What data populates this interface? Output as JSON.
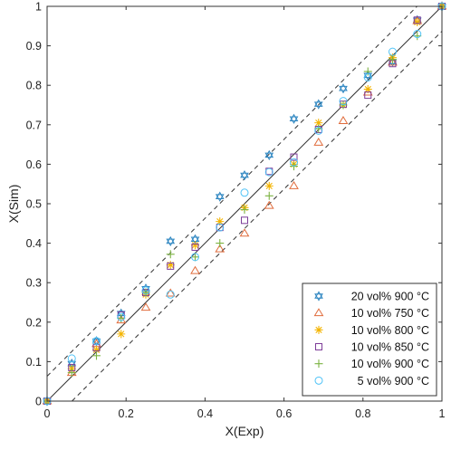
{
  "chart_data": {
    "type": "scatter",
    "xlabel": "X(Exp)",
    "ylabel": "X(Sim)",
    "xlim": [
      0,
      1
    ],
    "ylim": [
      0,
      1
    ],
    "xticks": [
      "0",
      "0.2",
      "0.4",
      "0.6",
      "0.8",
      "1"
    ],
    "yticks": [
      "0",
      "0.1",
      "0.2",
      "0.3",
      "0.4",
      "0.5",
      "0.6",
      "0.7",
      "0.8",
      "0.9",
      "1"
    ],
    "grid": false,
    "legend_position": "bottom-right",
    "reference_lines": [
      {
        "style": "solid",
        "x": [
          0,
          1
        ],
        "y": [
          0,
          1
        ]
      },
      {
        "style": "dashed",
        "x": [
          0,
          0.937
        ],
        "y": [
          0.063,
          1
        ]
      },
      {
        "style": "dashed",
        "x": [
          0.063,
          1
        ],
        "y": [
          0,
          0.937
        ]
      }
    ],
    "series": [
      {
        "name": "20 vol% 900 °C",
        "marker": "hexagram",
        "color": "#2E86C1",
        "x": [
          0,
          0.0625,
          0.125,
          0.1875,
          0.25,
          0.3125,
          0.375,
          0.4375,
          0.5,
          0.5625,
          0.625,
          0.6875,
          0.75,
          0.8125,
          0.875,
          0.9375,
          1
        ],
        "y": [
          0,
          0.095,
          0.152,
          0.222,
          0.285,
          0.405,
          0.41,
          0.518,
          0.572,
          0.623,
          0.715,
          0.752,
          0.792,
          0.825,
          0.86,
          0.965,
          1
        ]
      },
      {
        "name": "10 vol% 750 °C",
        "marker": "triangle",
        "color": "#E06C3C",
        "x": [
          0,
          0.0625,
          0.125,
          0.1875,
          0.25,
          0.3125,
          0.375,
          0.4375,
          0.5,
          0.5625,
          0.625,
          0.6875,
          0.75,
          0.8125,
          0.875,
          0.9375,
          1
        ],
        "y": [
          0,
          0.072,
          0.145,
          0.205,
          0.237,
          0.273,
          0.33,
          0.385,
          0.425,
          0.495,
          0.545,
          0.655,
          0.71,
          0.782,
          0.858,
          0.963,
          1
        ]
      },
      {
        "name": "10 vol% 800 °C",
        "marker": "asterisk",
        "color": "#F4B400",
        "x": [
          0,
          0.0625,
          0.125,
          0.1875,
          0.25,
          0.3125,
          0.375,
          0.4375,
          0.5,
          0.5625,
          0.625,
          0.6875,
          0.75,
          0.8125,
          0.875,
          0.9375,
          1
        ],
        "y": [
          0,
          0.082,
          0.13,
          0.17,
          0.27,
          0.345,
          0.395,
          0.455,
          0.49,
          0.545,
          0.6,
          0.705,
          0.75,
          0.79,
          0.87,
          0.96,
          1
        ]
      },
      {
        "name": "10 vol% 850 °C",
        "marker": "square",
        "color": "#7D3C98",
        "x": [
          0,
          0.0625,
          0.125,
          0.1875,
          0.25,
          0.3125,
          0.375,
          0.4375,
          0.5,
          0.5625,
          0.625,
          0.6875,
          0.75,
          0.8125,
          0.875,
          0.9375,
          1
        ],
        "y": [
          0,
          0.085,
          0.135,
          0.218,
          0.275,
          0.342,
          0.39,
          0.44,
          0.458,
          0.582,
          0.618,
          0.688,
          0.752,
          0.775,
          0.855,
          0.965,
          1
        ]
      },
      {
        "name": "10 vol% 900 °C",
        "marker": "plus",
        "color": "#7CB342",
        "x": [
          0,
          0.0625,
          0.125,
          0.1875,
          0.25,
          0.3125,
          0.375,
          0.4375,
          0.5,
          0.5625,
          0.625,
          0.6875,
          0.75,
          0.8125,
          0.875,
          0.9375,
          1
        ],
        "y": [
          0,
          0.072,
          0.115,
          0.21,
          0.275,
          0.372,
          0.365,
          0.4,
          0.485,
          0.52,
          0.595,
          0.69,
          0.75,
          0.835,
          0.865,
          0.925,
          1
        ]
      },
      {
        "name": "5 vol% 900 °C",
        "marker": "circle",
        "color": "#4FC3F7",
        "x": [
          0,
          0.0625,
          0.125,
          0.1875,
          0.25,
          0.3125,
          0.375,
          0.4375,
          0.5,
          0.5625,
          0.625,
          0.6875,
          0.75,
          0.8125,
          0.875,
          0.9375,
          1
        ],
        "y": [
          0,
          0.108,
          0.152,
          0.213,
          0.28,
          0.27,
          0.365,
          0.44,
          0.528,
          0.58,
          0.605,
          0.685,
          0.76,
          0.82,
          0.885,
          0.93,
          1
        ]
      }
    ]
  }
}
